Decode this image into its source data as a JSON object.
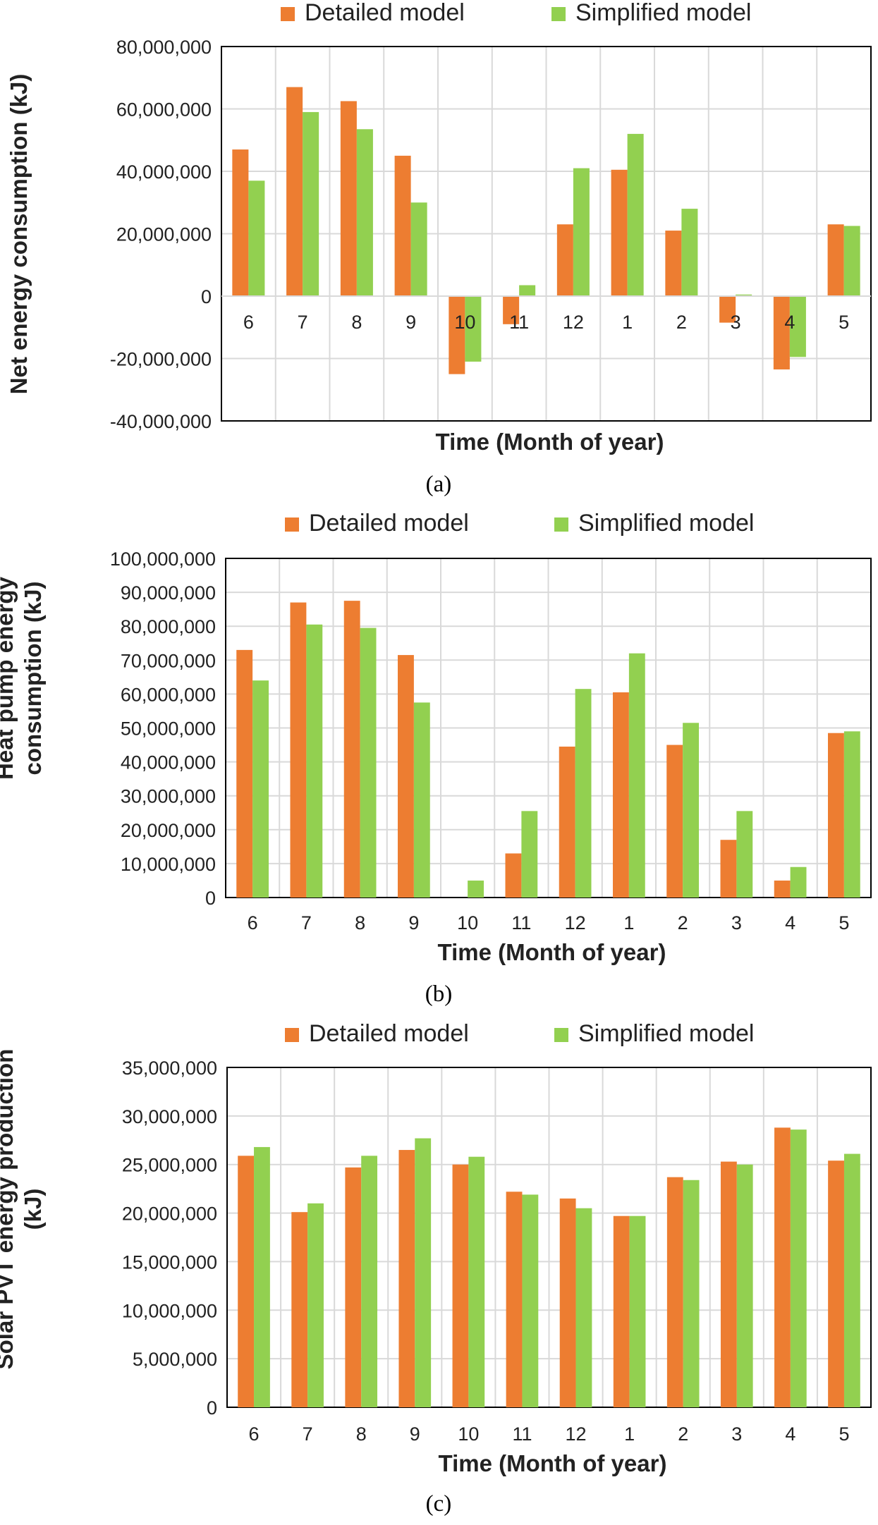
{
  "colors": {
    "detailed": "#ED7D31",
    "simplified": "#92D050",
    "grid": "#D9D9D9",
    "axis": "#000000"
  },
  "chart_data": [
    {
      "type": "bar",
      "panel": "(a)",
      "categories": [
        "6",
        "7",
        "8",
        "9",
        "10",
        "11",
        "12",
        "1",
        "2",
        "3",
        "4",
        "5"
      ],
      "series": [
        {
          "name": "Detailed model",
          "values": [
            47000000,
            67000000,
            62500000,
            45000000,
            -25000000,
            -9000000,
            23000000,
            40500000,
            21000000,
            -8500000,
            -23500000,
            23000000
          ]
        },
        {
          "name": "Simplified model",
          "values": [
            37000000,
            59000000,
            53500000,
            30000000,
            -21000000,
            3500000,
            41000000,
            52000000,
            28000000,
            500000,
            -19500000,
            22500000
          ]
        }
      ],
      "ylim": [
        -40000000,
        80000000
      ],
      "yticks": [
        -40000000,
        -20000000,
        0,
        20000000,
        40000000,
        60000000,
        80000000
      ],
      "ytick_labels": [
        "-40,000,000",
        "-20,000,000",
        "0",
        "20,000,000",
        "40,000,000",
        "60,000,000",
        "80,000,000"
      ],
      "xlabel": "Time (Month of year)",
      "ylabel": [
        "Net energy consumption (kJ)"
      ],
      "legend": [
        "Detailed model",
        "Simplified model"
      ],
      "legend_position": "top"
    },
    {
      "type": "bar",
      "panel": "(b)",
      "categories": [
        "6",
        "7",
        "8",
        "9",
        "10",
        "11",
        "12",
        "1",
        "2",
        "3",
        "4",
        "5"
      ],
      "series": [
        {
          "name": "Detailed model",
          "values": [
            73000000,
            87000000,
            87500000,
            71500000,
            0,
            13000000,
            44500000,
            60500000,
            45000000,
            17000000,
            5000000,
            48500000
          ]
        },
        {
          "name": "Simplified model",
          "values": [
            64000000,
            80500000,
            79500000,
            57500000,
            5000000,
            25500000,
            61500000,
            72000000,
            51500000,
            25500000,
            9000000,
            49000000
          ]
        }
      ],
      "ylim": [
        0,
        100000000
      ],
      "yticks": [
        0,
        10000000,
        20000000,
        30000000,
        40000000,
        50000000,
        60000000,
        70000000,
        80000000,
        90000000,
        100000000
      ],
      "ytick_labels": [
        "0",
        "10,000,000",
        "20,000,000",
        "30,000,000",
        "40,000,000",
        "50,000,000",
        "60,000,000",
        "70,000,000",
        "80,000,000",
        "90,000,000",
        "100,000,000"
      ],
      "xlabel": "Time (Month of year)",
      "ylabel": [
        "Heat pump energy",
        "consumption (kJ)"
      ],
      "legend": [
        "Detailed model",
        "Simplified model"
      ],
      "legend_position": "top"
    },
    {
      "type": "bar",
      "panel": "(c)",
      "categories": [
        "6",
        "7",
        "8",
        "9",
        "10",
        "11",
        "12",
        "1",
        "2",
        "3",
        "4",
        "5"
      ],
      "series": [
        {
          "name": "Detailed model",
          "values": [
            25900000,
            20100000,
            24700000,
            26500000,
            25000000,
            22200000,
            21500000,
            19700000,
            23700000,
            25300000,
            28800000,
            25400000
          ]
        },
        {
          "name": "Simplified model",
          "values": [
            26800000,
            21000000,
            25900000,
            27700000,
            25800000,
            21900000,
            20500000,
            19700000,
            23400000,
            25000000,
            28600000,
            26100000
          ]
        }
      ],
      "ylim": [
        0,
        35000000
      ],
      "yticks": [
        0,
        5000000,
        10000000,
        15000000,
        20000000,
        25000000,
        30000000,
        35000000
      ],
      "ytick_labels": [
        "0",
        "5,000,000",
        "10,000,000",
        "15,000,000",
        "20,000,000",
        "25,000,000",
        "30,000,000",
        "35,000,000"
      ],
      "xlabel": "Time (Month of year)",
      "ylabel": [
        "Solar PVT energy production",
        "(kJ)"
      ],
      "legend": [
        "Detailed model",
        "Simplified model"
      ],
      "legend_position": "top"
    }
  ]
}
